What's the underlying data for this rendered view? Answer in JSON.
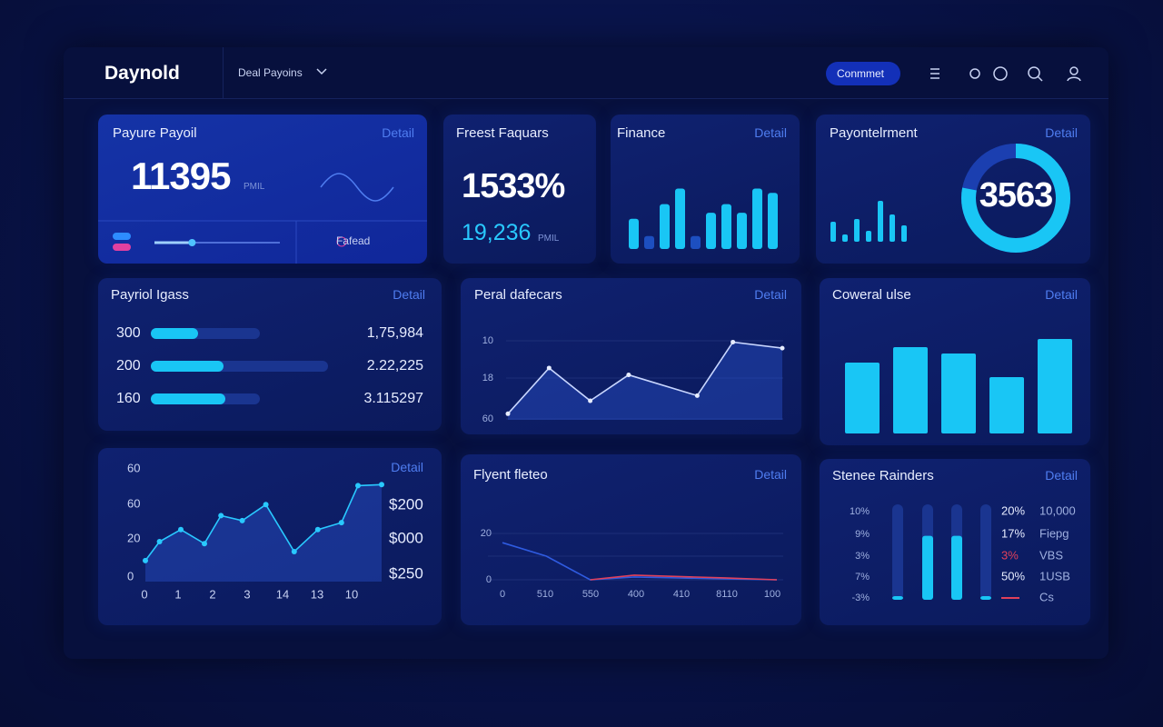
{
  "header": {
    "brand": "Daynold",
    "dropdown": "Deal Payoins",
    "button": "Conmmet"
  },
  "kpi1": {
    "title": "Payure Payoil",
    "link": "Detail",
    "value": 11395,
    "unit": "PMIL",
    "footer": "Fafead",
    "slider": 30
  },
  "kpi2": {
    "title": "Freest Faquars",
    "value": "1533%",
    "sub": "19,236",
    "unit": "PMIL"
  },
  "finance": {
    "title": "Finance",
    "link": "Detail",
    "bars": [
      35,
      15,
      52,
      70,
      15,
      42,
      52,
      42,
      70,
      65
    ],
    "color": "#19c6f5",
    "dim_color": "#1d4fc0"
  },
  "payment": {
    "title": "Payontelrment",
    "link": "Detail",
    "value": 3563,
    "bars": [
      22,
      8,
      25,
      12,
      45,
      30,
      18
    ],
    "ring": 78,
    "color": "#19c6f5"
  },
  "payroll": {
    "title": "Payriol Igass",
    "link": "Detail",
    "color": "#19c6f5",
    "rows": [
      {
        "label": 300,
        "bar": 52,
        "track": 120,
        "value": "1,75,984"
      },
      {
        "label": 200,
        "bar": 80,
        "track": 195,
        "value": "2.22,225"
      },
      {
        "label": 160,
        "bar": 82,
        "track": 120,
        "value": "3.115297"
      }
    ]
  },
  "peral": {
    "title": "Peral dafecars",
    "link": "Detail",
    "y_labels": [
      "10",
      "18",
      "60"
    ],
    "x": [
      0,
      15,
      30,
      44,
      69,
      82,
      100
    ],
    "values": [
      6,
      59,
      21,
      51,
      27,
      89,
      82
    ]
  },
  "coweral": {
    "title": "Coweral ulse",
    "link": "Detail",
    "values": [
      78,
      95,
      88,
      62,
      104
    ],
    "ylim": [
      0,
      110
    ],
    "color": "#19c6f5"
  },
  "trend": {
    "link": "Detail",
    "y_labels": [
      "60",
      "60",
      "20",
      "0"
    ],
    "x_labels": [
      "0",
      "1",
      "2",
      "3",
      "14",
      "13",
      "10"
    ],
    "right_labels": [
      "$200",
      "$000",
      "$250"
    ],
    "x": [
      0,
      6,
      15,
      25,
      32,
      41,
      51,
      63,
      73,
      83,
      90,
      100
    ],
    "values": [
      21,
      40,
      52,
      38,
      66,
      61,
      77,
      30,
      52,
      59,
      96,
      97
    ]
  },
  "flyent": {
    "title": "Flyent fleteo",
    "link": "Detail",
    "y_labels": [
      "20",
      "0"
    ],
    "x_labels": [
      "0",
      "510",
      "550",
      "400",
      "410",
      "8110",
      "100"
    ],
    "series": [
      {
        "color": "#2f5be0",
        "x": [
          0,
          16,
          32,
          48,
          81,
          100
        ],
        "values": [
          80,
          51,
          0,
          6,
          2,
          0
        ]
      },
      {
        "color": "#e0405a",
        "x": [
          32,
          48,
          81,
          100
        ],
        "values": [
          0,
          10,
          4,
          0
        ]
      }
    ]
  },
  "stenee": {
    "title": "Stenee Rainders",
    "link": "Detail",
    "left_labels": [
      "10%",
      "9%",
      "3%",
      "7%",
      "-3%"
    ],
    "bars": [
      3,
      67,
      67,
      3
    ],
    "color": "#19c6f5",
    "legend": [
      {
        "pct": "20%",
        "label": "10,000",
        "color": "#e6ecff"
      },
      {
        "pct": "17%",
        "label": "Fiepg",
        "color": "#e6ecff"
      },
      {
        "pct": "3%",
        "label": "VBS",
        "color": "#e0405a"
      },
      {
        "pct": "50%",
        "label": "1USB",
        "color": "#e6ecff"
      },
      {
        "label": "Cs",
        "color": "#e0405a"
      }
    ]
  }
}
